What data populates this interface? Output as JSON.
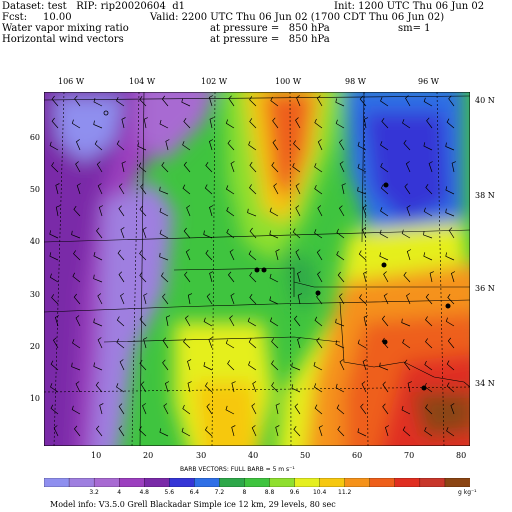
{
  "header": {
    "dataset": "Dataset: test   RIP: rip20020604  d1",
    "init": "Init: 1200 UTC Thu 06 Jun 02",
    "fcst": "Fcst:     10.00",
    "valid": "Valid: 2200 UTC Thu 06 Jun 02 (1700 CDT Thu 06 Jun 02)",
    "field1": "Water vapor mixing ratio",
    "field1_pressure": "at pressure =   850 hPa",
    "sm": "sm= 1",
    "field2": "Horizontal wind vectors",
    "field2_pressure": "at pressure =   850 hPa"
  },
  "map": {
    "lon_labels": [
      "106 W",
      "104 W",
      "102 W",
      "100 W",
      "98 W",
      "96 W"
    ],
    "lat_labels": [
      "40 N",
      "38 N",
      "36 N",
      "34 N"
    ],
    "y_ticks": [
      "60",
      "50",
      "40",
      "30",
      "20",
      "10"
    ],
    "x_ticks": [
      "10",
      "20",
      "30",
      "40",
      "50",
      "60",
      "70",
      "80"
    ],
    "x_range": [
      1,
      82
    ],
    "y_range": [
      1,
      69
    ]
  },
  "barbs_caption": "BARB VECTORS:  FULL BARB = 5 m s⁻¹",
  "colorbar": {
    "ticks": [
      "3.2",
      "4",
      "4.8",
      "5.6",
      "6.4",
      "7.2",
      "8",
      "8.8",
      "9.6",
      "10.4",
      "11.2"
    ],
    "units": "g kg⁻¹",
    "colors": [
      "#8f8fef",
      "#9f7fe0",
      "#a86ad2",
      "#9c3fbf",
      "#7a2aa8",
      "#3535d6",
      "#2f6fe6",
      "#2ea84a",
      "#3fc43f",
      "#8fdf2f",
      "#e5ef1f",
      "#f6c810",
      "#f5921a",
      "#ee5f1a",
      "#e02e20",
      "#c8362a",
      "#8b4513"
    ]
  },
  "model_info": "Model info: V3.5.0   Grell     Blackadar   Simple ice    12 km,  29 levels,   80 sec"
}
